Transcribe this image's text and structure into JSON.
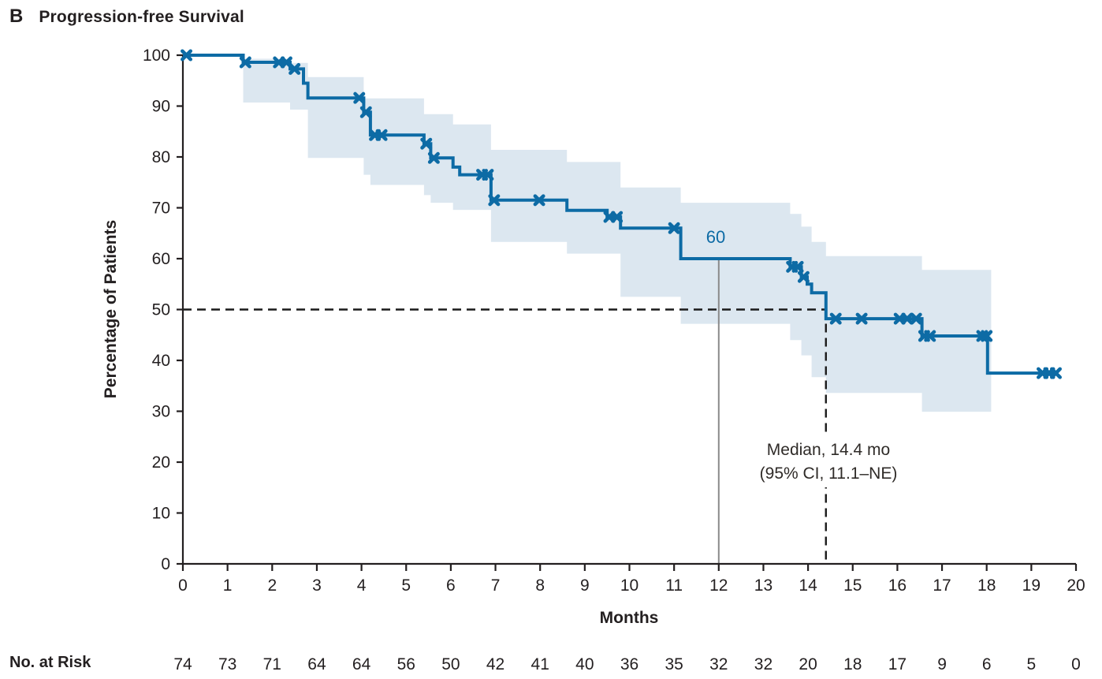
{
  "header": {
    "panel_label": "B",
    "title": "Progression-free Survival"
  },
  "colors": {
    "curve": "#0d6ba5",
    "ci_band": "#dce7f0",
    "axis": "#231f20",
    "solid_ref_line": "#8a8a8a",
    "dashed_ref_line": "#1a1a1a",
    "annotation_text": "#2f2b28"
  },
  "chart_data": {
    "type": "line",
    "subtype": "kaplan-meier-step-curve-with-95CI-band",
    "title": "Progression-free Survival",
    "xlabel": "Months",
    "ylabel": "Percentage of Patients",
    "xlim": [
      0,
      20
    ],
    "ylim": [
      0,
      100
    ],
    "xticks": [
      0,
      1,
      2,
      3,
      4,
      5,
      6,
      7,
      8,
      9,
      10,
      11,
      12,
      13,
      14,
      15,
      16,
      17,
      18,
      19,
      20
    ],
    "yticks": [
      0,
      10,
      20,
      30,
      40,
      50,
      60,
      70,
      80,
      90,
      100
    ],
    "grid": false,
    "legend": "none",
    "curve_steps": [
      [
        0,
        100
      ],
      [
        1.35,
        98.6
      ],
      [
        2.4,
        97.3
      ],
      [
        2.7,
        94.5
      ],
      [
        2.8,
        91.6
      ],
      [
        4.05,
        88.8
      ],
      [
        4.2,
        84.3
      ],
      [
        5.4,
        82.6
      ],
      [
        5.55,
        79.8
      ],
      [
        6.05,
        78.0
      ],
      [
        6.2,
        76.5
      ],
      [
        6.9,
        71.5
      ],
      [
        8.6,
        69.5
      ],
      [
        9.5,
        68.2
      ],
      [
        9.8,
        66.0
      ],
      [
        11.15,
        60.0
      ],
      [
        13.6,
        58.4
      ],
      [
        13.85,
        56.4
      ],
      [
        13.98,
        55.0
      ],
      [
        14.08,
        53.3
      ],
      [
        14.4,
        48.2
      ],
      [
        16.55,
        44.8
      ],
      [
        18.02,
        37.5
      ]
    ],
    "curve_end": 19.6,
    "censor_marks": [
      [
        0.08,
        100
      ],
      [
        1.4,
        98.6
      ],
      [
        2.15,
        98.6
      ],
      [
        2.32,
        98.6
      ],
      [
        2.5,
        97.3
      ],
      [
        3.95,
        91.6
      ],
      [
        4.1,
        88.8
      ],
      [
        4.3,
        84.3
      ],
      [
        4.45,
        84.3
      ],
      [
        5.45,
        82.6
      ],
      [
        5.62,
        79.8
      ],
      [
        6.7,
        76.5
      ],
      [
        6.83,
        76.5
      ],
      [
        6.97,
        71.5
      ],
      [
        7.98,
        71.5
      ],
      [
        9.55,
        68.2
      ],
      [
        9.72,
        68.2
      ],
      [
        11.0,
        66.0
      ],
      [
        13.64,
        58.4
      ],
      [
        13.77,
        58.4
      ],
      [
        13.9,
        56.4
      ],
      [
        14.62,
        48.2
      ],
      [
        15.2,
        48.2
      ],
      [
        16.05,
        48.2
      ],
      [
        16.22,
        48.2
      ],
      [
        16.42,
        48.2
      ],
      [
        16.6,
        44.8
      ],
      [
        16.73,
        44.8
      ],
      [
        17.9,
        44.8
      ],
      [
        18.0,
        44.8
      ],
      [
        19.25,
        37.5
      ],
      [
        19.4,
        37.5
      ],
      [
        19.55,
        37.5
      ]
    ],
    "ci_band": {
      "upper": [
        [
          1.35,
          99.3
        ],
        [
          2.4,
          98.5
        ],
        [
          2.8,
          95.7
        ],
        [
          4.05,
          91.5
        ],
        [
          5.4,
          88.4
        ],
        [
          6.05,
          86.4
        ],
        [
          6.9,
          81.4
        ],
        [
          8.6,
          79.0
        ],
        [
          9.8,
          74.0
        ],
        [
          11.15,
          71.0
        ],
        [
          13.6,
          68.8
        ],
        [
          13.85,
          66.3
        ],
        [
          14.08,
          63.3
        ],
        [
          14.4,
          60.5
        ],
        [
          16.55,
          57.8
        ]
      ],
      "lower": [
        [
          1.35,
          90.7
        ],
        [
          2.4,
          89.3
        ],
        [
          2.8,
          79.8
        ],
        [
          4.05,
          76.5
        ],
        [
          4.2,
          74.5
        ],
        [
          5.4,
          72.5
        ],
        [
          5.55,
          71.0
        ],
        [
          6.05,
          69.6
        ],
        [
          6.9,
          63.3
        ],
        [
          8.6,
          61.0
        ],
        [
          9.8,
          52.5
        ],
        [
          11.15,
          47.2
        ],
        [
          13.6,
          44.0
        ],
        [
          13.85,
          41.0
        ],
        [
          14.08,
          36.7
        ],
        [
          14.4,
          33.6
        ],
        [
          16.55,
          29.9
        ]
      ],
      "end": 18.1
    },
    "reference_lines": {
      "solid_vertical_x": 12,
      "solid_vertical_top_value": 60,
      "dashed_horizontal_y": 50,
      "dashed_vertical_x": 14.4
    },
    "annotations": {
      "curve_value_label": "60",
      "median_line1": "Median, 14.4 mo",
      "median_line2": "(95% CI, 11.1–NE)"
    },
    "risk_table": {
      "label": "No. at Risk",
      "months": [
        0,
        1,
        2,
        3,
        4,
        5,
        6,
        7,
        8,
        9,
        10,
        11,
        12,
        13,
        14,
        15,
        16,
        17,
        18,
        19,
        20
      ],
      "values": [
        74,
        73,
        71,
        64,
        64,
        56,
        50,
        42,
        41,
        40,
        36,
        35,
        32,
        32,
        20,
        18,
        17,
        9,
        6,
        5,
        0
      ]
    }
  }
}
